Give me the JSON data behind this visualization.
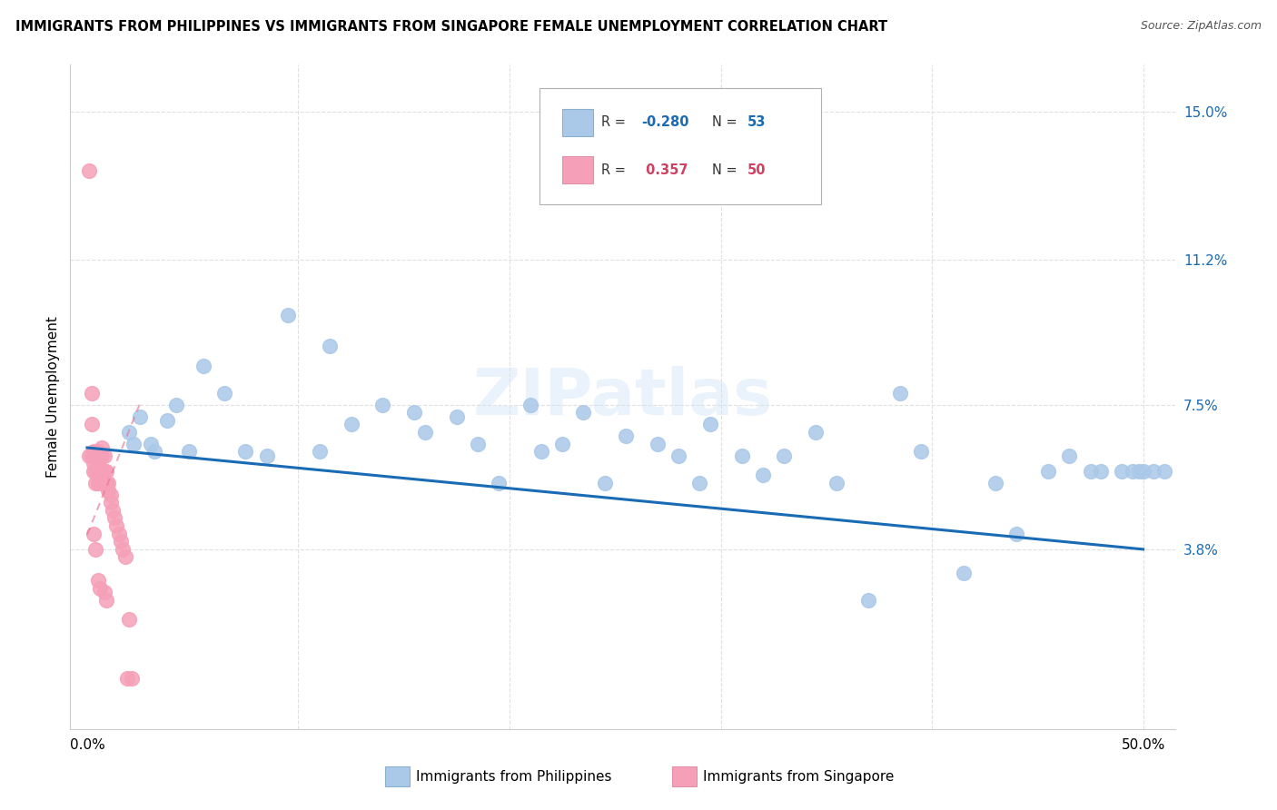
{
  "title": "IMMIGRANTS FROM PHILIPPINES VS IMMIGRANTS FROM SINGAPORE FEMALE UNEMPLOYMENT CORRELATION CHART",
  "source": "Source: ZipAtlas.com",
  "ylabel": "Female Unemployment",
  "y_ticks": [
    0.038,
    0.075,
    0.112,
    0.15
  ],
  "y_tick_labels": [
    "3.8%",
    "7.5%",
    "11.2%",
    "15.0%"
  ],
  "x_ticks": [
    0.0,
    0.1,
    0.2,
    0.3,
    0.4,
    0.5
  ],
  "x_tick_labels": [
    "0.0%",
    "",
    "",
    "",
    "",
    "50.0%"
  ],
  "philippines_color": "#aac8e8",
  "singapore_color": "#f5a0b8",
  "philippines_line_color": "#1a6bb5",
  "singapore_line_color": "#e87090",
  "legend_r1": "-0.280",
  "legend_n1": "53",
  "legend_r2": "0.357",
  "legend_n2": "50",
  "watermark": "ZIPatlas",
  "blue_x": [
    0.02,
    0.022,
    0.025,
    0.03,
    0.032,
    0.038,
    0.042,
    0.048,
    0.055,
    0.065,
    0.075,
    0.085,
    0.095,
    0.11,
    0.115,
    0.125,
    0.14,
    0.155,
    0.16,
    0.175,
    0.185,
    0.195,
    0.21,
    0.215,
    0.225,
    0.235,
    0.245,
    0.255,
    0.27,
    0.28,
    0.29,
    0.295,
    0.31,
    0.32,
    0.33,
    0.345,
    0.355,
    0.37,
    0.385,
    0.395,
    0.415,
    0.43,
    0.44,
    0.455,
    0.465,
    0.475,
    0.48,
    0.49,
    0.495,
    0.498,
    0.5,
    0.505,
    0.51
  ],
  "blue_y": [
    0.068,
    0.065,
    0.072,
    0.065,
    0.063,
    0.071,
    0.075,
    0.063,
    0.085,
    0.078,
    0.063,
    0.062,
    0.098,
    0.063,
    0.09,
    0.07,
    0.075,
    0.073,
    0.068,
    0.072,
    0.065,
    0.055,
    0.075,
    0.063,
    0.065,
    0.073,
    0.055,
    0.067,
    0.065,
    0.062,
    0.055,
    0.07,
    0.062,
    0.057,
    0.062,
    0.068,
    0.055,
    0.025,
    0.078,
    0.063,
    0.032,
    0.055,
    0.042,
    0.058,
    0.062,
    0.058,
    0.058,
    0.058,
    0.058,
    0.058,
    0.058,
    0.058,
    0.058
  ],
  "pink_x": [
    0.001,
    0.001,
    0.002,
    0.002,
    0.002,
    0.003,
    0.003,
    0.003,
    0.003,
    0.004,
    0.004,
    0.004,
    0.004,
    0.004,
    0.005,
    0.005,
    0.005,
    0.005,
    0.005,
    0.006,
    0.006,
    0.006,
    0.006,
    0.007,
    0.007,
    0.007,
    0.007,
    0.008,
    0.008,
    0.008,
    0.008,
    0.009,
    0.009,
    0.009,
    0.01,
    0.01,
    0.011,
    0.011,
    0.012,
    0.013,
    0.014,
    0.015,
    0.016,
    0.017,
    0.018,
    0.019,
    0.02,
    0.021,
    0.005,
    0.003
  ],
  "pink_y": [
    0.062,
    0.135,
    0.062,
    0.07,
    0.078,
    0.063,
    0.062,
    0.058,
    0.042,
    0.063,
    0.062,
    0.058,
    0.055,
    0.038,
    0.063,
    0.062,
    0.058,
    0.055,
    0.03,
    0.062,
    0.058,
    0.055,
    0.028,
    0.064,
    0.062,
    0.058,
    0.055,
    0.062,
    0.058,
    0.055,
    0.027,
    0.058,
    0.055,
    0.025,
    0.055,
    0.053,
    0.052,
    0.05,
    0.048,
    0.046,
    0.044,
    0.042,
    0.04,
    0.038,
    0.036,
    0.005,
    0.02,
    0.005,
    0.06,
    0.06
  ]
}
